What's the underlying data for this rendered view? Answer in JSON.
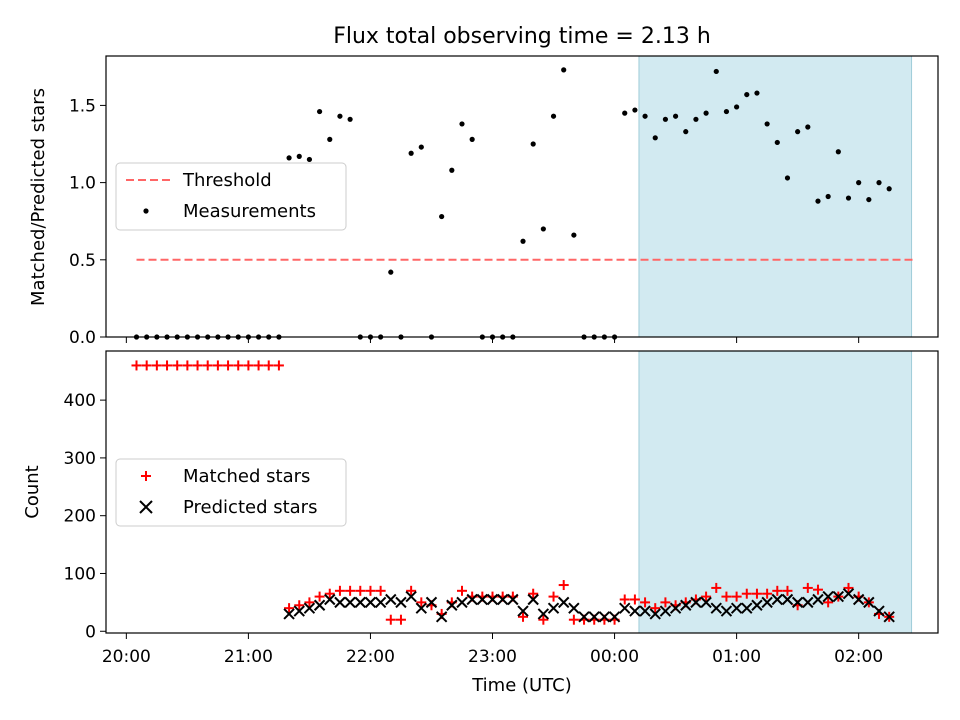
{
  "chart_data": [
    {
      "type": "scatter",
      "title": "Flux total observing time = 2.13 h",
      "xlabel": "",
      "ylabel": "Matched/Predicted stars",
      "ylim": [
        0,
        1.82
      ],
      "yticks": [
        "0.0",
        "0.5",
        "1.0",
        "1.5"
      ],
      "highlight_span": [
        "00:12",
        "02:26"
      ],
      "legend": {
        "location": "center-left",
        "entries": [
          "Threshold",
          "Measurements"
        ]
      },
      "threshold": {
        "name": "Threshold",
        "x_range": [
          "20:05",
          "02:28"
        ],
        "y": 0.5,
        "color": "#ff6666"
      },
      "series": [
        {
          "name": "Measurements",
          "color": "#000000",
          "x": [
            "20:05",
            "20:10",
            "20:15",
            "20:20",
            "20:25",
            "20:30",
            "20:35",
            "20:40",
            "20:45",
            "20:50",
            "20:55",
            "21:00",
            "21:05",
            "21:10",
            "21:15",
            "21:20",
            "21:25",
            "21:30",
            "21:35",
            "21:40",
            "21:45",
            "21:50",
            "21:55",
            "22:00",
            "22:05",
            "22:10",
            "22:15",
            "22:20",
            "22:25",
            "22:30",
            "22:35",
            "22:40",
            "22:45",
            "22:50",
            "22:55",
            "23:00",
            "23:05",
            "23:10",
            "23:15",
            "23:20",
            "23:25",
            "23:30",
            "23:35",
            "23:40",
            "23:45",
            "23:50",
            "23:55",
            "00:00",
            "00:05",
            "00:10",
            "00:15",
            "00:20",
            "00:25",
            "00:30",
            "00:35",
            "00:40",
            "00:45",
            "00:50",
            "00:55",
            "01:00",
            "01:05",
            "01:10",
            "01:15",
            "01:20",
            "01:25",
            "01:30",
            "01:35",
            "01:40",
            "01:45",
            "01:50",
            "01:55",
            "02:00",
            "02:05",
            "02:10",
            "02:15"
          ],
          "y": [
            0,
            0,
            0,
            0,
            0,
            0,
            0,
            0,
            0,
            0,
            0,
            0,
            0,
            0,
            0,
            1.16,
            1.17,
            1.15,
            1.46,
            1.28,
            1.43,
            1.41,
            0,
            0,
            0,
            0.42,
            0,
            1.19,
            1.23,
            0,
            0.78,
            1.08,
            1.38,
            1.28,
            0,
            0,
            0,
            0,
            0.62,
            1.25,
            0.7,
            1.43,
            1.73,
            0.66,
            0,
            0,
            0,
            0,
            1.45,
            1.47,
            1.43,
            1.29,
            1.41,
            1.43,
            1.33,
            1.41,
            1.45,
            1.72,
            1.46,
            1.49,
            1.57,
            1.58,
            1.38,
            1.26,
            1.03,
            1.33,
            1.36,
            0.88,
            0.91,
            1.2,
            0.9,
            1.0,
            0.89,
            1.0,
            0.96
          ]
        }
      ]
    },
    {
      "type": "scatter",
      "xlabel": "Time (UTC)",
      "ylabel": "Count",
      "ylim": [
        -3,
        485
      ],
      "yticks": [
        "0",
        "100",
        "200",
        "300",
        "400"
      ],
      "xticks": [
        "20:00",
        "21:00",
        "22:00",
        "23:00",
        "00:00",
        "01:00",
        "02:00"
      ],
      "highlight_span": [
        "00:12",
        "02:26"
      ],
      "legend": {
        "location": "center-left",
        "entries": [
          "Matched stars",
          "Predicted stars"
        ]
      },
      "series": [
        {
          "name": "Matched stars",
          "marker": "+",
          "color": "#ff0000",
          "x": [
            "20:05",
            "20:10",
            "20:15",
            "20:20",
            "20:25",
            "20:30",
            "20:35",
            "20:40",
            "20:45",
            "20:50",
            "20:55",
            "21:00",
            "21:05",
            "21:10",
            "21:15",
            "21:20",
            "21:25",
            "21:30",
            "21:35",
            "21:40",
            "21:45",
            "21:50",
            "21:55",
            "22:00",
            "22:05",
            "22:10",
            "22:15",
            "22:20",
            "22:25",
            "22:30",
            "22:35",
            "22:40",
            "22:45",
            "22:50",
            "22:55",
            "23:00",
            "23:05",
            "23:10",
            "23:15",
            "23:20",
            "23:25",
            "23:30",
            "23:35",
            "23:40",
            "23:45",
            "23:50",
            "23:55",
            "00:00",
            "00:05",
            "00:10",
            "00:15",
            "00:20",
            "00:25",
            "00:30",
            "00:35",
            "00:40",
            "00:45",
            "00:50",
            "00:55",
            "01:00",
            "01:05",
            "01:10",
            "01:15",
            "01:20",
            "01:25",
            "01:30",
            "01:35",
            "01:40",
            "01:45",
            "01:50",
            "01:55",
            "02:00",
            "02:05",
            "02:10",
            "02:15"
          ],
          "y": [
            460,
            460,
            460,
            460,
            460,
            460,
            460,
            460,
            460,
            460,
            460,
            460,
            460,
            460,
            460,
            40,
            45,
            50,
            60,
            65,
            70,
            70,
            70,
            70,
            70,
            20,
            20,
            70,
            50,
            45,
            30,
            50,
            70,
            60,
            60,
            60,
            60,
            60,
            25,
            65,
            20,
            60,
            80,
            20,
            20,
            20,
            20,
            20,
            55,
            55,
            50,
            40,
            50,
            45,
            50,
            55,
            60,
            75,
            60,
            60,
            65,
            65,
            65,
            70,
            70,
            45,
            75,
            72,
            50,
            60,
            75,
            60,
            50,
            30,
            25
          ]
        },
        {
          "name": "Predicted stars",
          "marker": "x",
          "color": "#000000",
          "x": [
            "21:20",
            "21:25",
            "21:30",
            "21:35",
            "21:40",
            "21:45",
            "21:50",
            "21:55",
            "22:00",
            "22:05",
            "22:10",
            "22:15",
            "22:20",
            "22:25",
            "22:30",
            "22:35",
            "22:40",
            "22:45",
            "22:50",
            "22:55",
            "23:00",
            "23:05",
            "23:10",
            "23:15",
            "23:20",
            "23:25",
            "23:30",
            "23:35",
            "23:40",
            "23:45",
            "23:50",
            "23:55",
            "00:00",
            "00:05",
            "00:10",
            "00:15",
            "00:20",
            "00:25",
            "00:30",
            "00:35",
            "00:40",
            "00:45",
            "00:50",
            "00:55",
            "01:00",
            "01:05",
            "01:10",
            "01:15",
            "01:20",
            "01:25",
            "01:30",
            "01:35",
            "01:40",
            "01:45",
            "01:50",
            "01:55",
            "02:00",
            "02:05",
            "02:10",
            "02:15"
          ],
          "y": [
            30,
            35,
            40,
            45,
            55,
            50,
            50,
            50,
            50,
            50,
            55,
            50,
            60,
            40,
            50,
            25,
            45,
            50,
            55,
            55,
            55,
            55,
            55,
            35,
            55,
            30,
            40,
            50,
            40,
            25,
            25,
            25,
            25,
            40,
            35,
            35,
            30,
            35,
            40,
            45,
            50,
            50,
            40,
            35,
            40,
            40,
            45,
            50,
            55,
            55,
            50,
            50,
            55,
            60,
            60,
            65,
            55,
            50,
            35,
            25
          ]
        }
      ]
    }
  ]
}
